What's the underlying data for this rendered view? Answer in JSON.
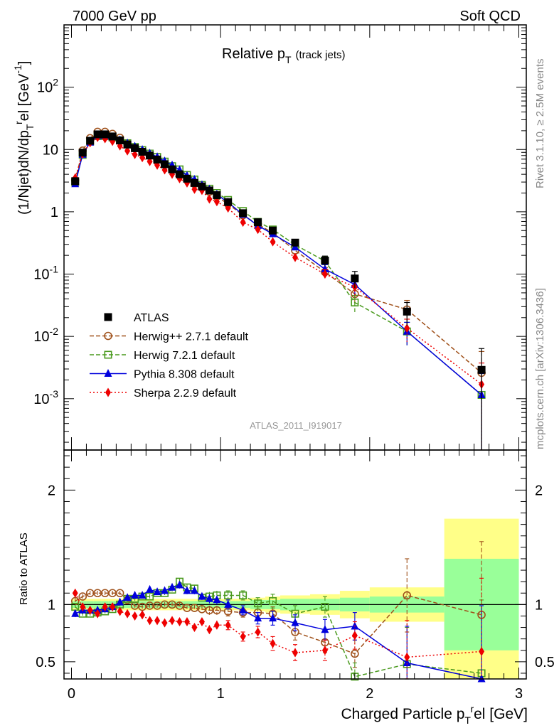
{
  "header": {
    "left": "7000 GeV pp",
    "right": "Soft QCD"
  },
  "side_text": {
    "rivet": "Rivet 3.1.10, ≥ 2.5M events",
    "mcplots": "mcplots.cern.ch [arXiv:1306.3436]"
  },
  "watermark": "ATLAS_2011_I919017",
  "colors": {
    "atlas": "#000000",
    "herwigpp": "#a0521c",
    "herwig7": "#4a9a1e",
    "pythia": "#0000dd",
    "sherpa": "#ee0000",
    "band_inner": "#99ff99",
    "band_outer": "#ffff88"
  },
  "chart_data": [
    {
      "type": "line",
      "title_main": "Relative p",
      "title_sub": "T",
      "title_paren": "(track jets)",
      "ylabel": "(1/Njet)dN/dp",
      "ylabel_sub": "T",
      "ylabel_sup": "r",
      "ylabel_el": "el [GeV",
      "ylabel_sup2": "-1",
      "ylabel_end": "]",
      "yscale": "log",
      "xlim": [
        -0.05,
        3.05
      ],
      "ylim": [
        0.00015,
        1000
      ],
      "ytick_labels": [
        "10^-3",
        "10^-2",
        "10^-1",
        "1",
        "10",
        "10^2"
      ],
      "x": [
        0.025,
        0.075,
        0.125,
        0.175,
        0.225,
        0.275,
        0.325,
        0.375,
        0.425,
        0.475,
        0.525,
        0.575,
        0.625,
        0.675,
        0.725,
        0.775,
        0.825,
        0.875,
        0.925,
        0.975,
        1.05,
        1.15,
        1.25,
        1.35,
        1.5,
        1.7,
        1.9,
        2.25,
        2.75
      ],
      "series": [
        {
          "name": "ATLAS",
          "key": "atlas",
          "marker": "square-filled",
          "values": [
            3.1,
            8.9,
            13.8,
            17.5,
            17.5,
            16.2,
            14.0,
            12.0,
            10.5,
            9.2,
            8.0,
            6.9,
            5.8,
            4.8,
            4.0,
            3.4,
            2.9,
            2.55,
            2.2,
            1.85,
            1.43,
            0.95,
            0.68,
            0.5,
            0.32,
            0.165,
            0.085,
            0.025,
            0.0029
          ]
        },
        {
          "name": "Herwig++ 2.7.1 default",
          "key": "herwigpp",
          "marker": "circle-open",
          "dash": "6,3",
          "values": [
            3.2,
            9.6,
            15.2,
            19.2,
            19.2,
            17.8,
            15.4,
            12.5,
            10.4,
            9.0,
            7.9,
            6.8,
            5.8,
            4.8,
            3.95,
            3.3,
            2.8,
            2.45,
            2.1,
            1.75,
            1.34,
            0.88,
            0.63,
            0.46,
            0.24,
            0.108,
            0.048,
            0.027,
            0.0026
          ]
        },
        {
          "name": "Herwig 7.2.1 default",
          "key": "herwig7",
          "marker": "square-open",
          "dash": "6,3",
          "values": [
            3.0,
            8.2,
            13.4,
            16.4,
            16.5,
            15.6,
            14.0,
            12.6,
            11.0,
            9.8,
            8.6,
            7.6,
            6.4,
            5.4,
            4.8,
            3.9,
            3.3,
            2.7,
            2.35,
            2.0,
            1.55,
            1.03,
            0.69,
            0.52,
            0.295,
            0.162,
            0.035,
            0.012,
            0.00115
          ]
        },
        {
          "name": "Pythia 8.308 default",
          "key": "pythia",
          "marker": "triangle-filled",
          "dash": "",
          "values": [
            2.8,
            8.3,
            13.0,
            16.5,
            16.6,
            15.8,
            14.2,
            12.6,
            11.2,
            9.9,
            8.7,
            7.6,
            6.5,
            5.6,
            4.7,
            3.8,
            3.3,
            2.7,
            2.3,
            1.9,
            1.42,
            0.9,
            0.6,
            0.44,
            0.27,
            0.12,
            0.068,
            0.012,
            0.00115
          ]
        },
        {
          "name": "Sherpa 2.2.9 default",
          "key": "sherpa",
          "marker": "diamond-filled",
          "dash": "2,3",
          "values": [
            3.5,
            8.5,
            12.8,
            15.6,
            14.9,
            13.5,
            11.4,
            9.5,
            8.3,
            7.4,
            6.4,
            5.6,
            4.7,
            4.0,
            3.4,
            2.9,
            2.3,
            2.2,
            1.6,
            1.45,
            1.15,
            0.68,
            0.52,
            0.33,
            0.185,
            0.1,
            0.062,
            0.0135,
            0.0017
          ]
        }
      ],
      "legend_position": "lower-left"
    },
    {
      "type": "line",
      "ylabel": "Ratio to ATLAS",
      "xlabel_main": "Charged Particle p",
      "xlabel_sub": "T",
      "xlabel_sup": "r",
      "xlabel_end": "el [GeV]",
      "xlim": [
        -0.05,
        3.05
      ],
      "ylim": [
        0.35,
        2.35
      ],
      "ytick_labels": [
        "0.5",
        "1",
        "2"
      ],
      "xtick_labels": [
        "0",
        "1",
        "2",
        "3"
      ],
      "reference_line": 1,
      "band_bins": [
        0.0,
        0.05,
        0.1,
        0.15,
        0.2,
        0.25,
        0.3,
        0.35,
        0.4,
        0.45,
        0.5,
        0.55,
        0.6,
        0.65,
        0.7,
        0.75,
        0.8,
        0.85,
        0.9,
        0.95,
        1.0,
        1.1,
        1.2,
        1.3,
        1.4,
        1.6,
        1.8,
        2.0,
        2.5,
        3.0
      ],
      "band_inner": [
        0.03,
        0.03,
        0.03,
        0.03,
        0.03,
        0.03,
        0.03,
        0.03,
        0.03,
        0.03,
        0.03,
        0.03,
        0.03,
        0.03,
        0.03,
        0.03,
        0.03,
        0.03,
        0.03,
        0.03,
        0.03,
        0.03,
        0.04,
        0.04,
        0.05,
        0.05,
        0.06,
        0.07,
        0.4
      ],
      "band_outer": [
        0.05,
        0.05,
        0.05,
        0.05,
        0.05,
        0.05,
        0.05,
        0.05,
        0.05,
        0.05,
        0.05,
        0.05,
        0.05,
        0.05,
        0.05,
        0.05,
        0.05,
        0.05,
        0.05,
        0.05,
        0.05,
        0.05,
        0.06,
        0.07,
        0.08,
        0.09,
        0.12,
        0.15,
        0.75
      ],
      "series": [
        {
          "name": "Herwig++ 2.7.1 default",
          "key": "herwigpp",
          "marker": "circle-open",
          "dash": "6,3",
          "values": [
            1.03,
            1.07,
            1.1,
            1.1,
            1.1,
            1.1,
            1.1,
            1.04,
            0.99,
            0.98,
            0.99,
            0.99,
            1.0,
            1.0,
            0.99,
            0.97,
            0.97,
            0.96,
            0.95,
            0.95,
            0.94,
            0.93,
            0.93,
            0.92,
            0.76,
            0.67,
            0.57,
            1.08,
            0.91
          ]
        },
        {
          "name": "Herwig 7.2.1 default",
          "key": "herwig7",
          "marker": "square-open",
          "dash": "6,3",
          "values": [
            0.98,
            0.92,
            0.92,
            0.93,
            0.94,
            0.96,
            1.0,
            1.05,
            1.05,
            1.07,
            1.07,
            1.1,
            1.1,
            1.13,
            1.2,
            1.15,
            1.14,
            1.06,
            1.07,
            1.08,
            1.08,
            1.08,
            1.01,
            1.03,
            0.92,
            0.98,
            0.37,
            0.48,
            0.4
          ]
        },
        {
          "name": "Pythia 8.308 default",
          "key": "pythia",
          "marker": "triangle-filled",
          "dash": "",
          "values": [
            0.92,
            0.95,
            0.95,
            0.95,
            0.96,
            0.98,
            1.02,
            1.06,
            1.08,
            1.08,
            1.13,
            1.11,
            1.12,
            1.15,
            1.17,
            1.12,
            1.12,
            1.07,
            1.05,
            1.04,
            1.0,
            0.95,
            0.88,
            0.88,
            0.84,
            0.78,
            0.81,
            0.49,
            0.35
          ]
        },
        {
          "name": "Sherpa 2.2.9 default",
          "key": "sherpa",
          "marker": "diamond-filled",
          "dash": "2,3",
          "values": [
            1.1,
            0.98,
            0.95,
            0.92,
            0.98,
            0.98,
            0.94,
            0.92,
            0.9,
            0.91,
            0.86,
            0.86,
            0.84,
            0.86,
            0.85,
            0.85,
            0.8,
            0.85,
            0.78,
            0.82,
            0.82,
            0.72,
            0.76,
            0.66,
            0.58,
            0.6,
            0.73,
            0.54,
            0.59
          ]
        }
      ]
    }
  ]
}
